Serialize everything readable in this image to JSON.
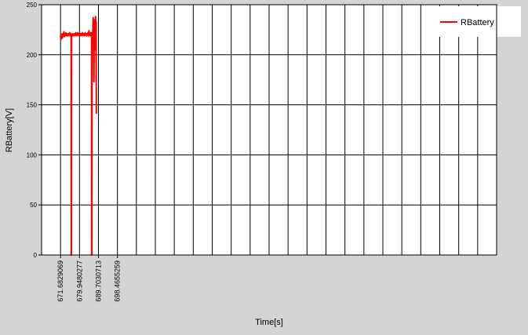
{
  "chart_data": {
    "type": "line",
    "title": "",
    "xlabel": "Time[s]",
    "ylabel": "RBattery[V]",
    "ylim": [
      0,
      250
    ],
    "yticks": [
      "0",
      "50",
      "100",
      "150",
      "200",
      "250"
    ],
    "xticks": [
      "671.6829069",
      "679.9480277",
      "689.7030713",
      "698.4655259"
    ],
    "grid": true,
    "legend_position": "top-right",
    "legend": [
      "RBattery"
    ],
    "series": [
      {
        "name": "RBattery",
        "color": "#ff0000",
        "points": [
          [
            0,
            218
          ],
          [
            0.5,
            221
          ],
          [
            1,
            216
          ],
          [
            1.5,
            220
          ],
          [
            2,
            217
          ],
          [
            2.5,
            221
          ],
          [
            3,
            219
          ],
          [
            3.5,
            223
          ],
          [
            4,
            218
          ],
          [
            4.5,
            221
          ],
          [
            5,
            219
          ],
          [
            5.5,
            222
          ],
          [
            6,
            220
          ],
          [
            6.5,
            219
          ],
          [
            7,
            221
          ],
          [
            7.5,
            220
          ],
          [
            8,
            219
          ],
          [
            8.5,
            221
          ],
          [
            9,
            220
          ],
          [
            9.5,
            222
          ],
          [
            10,
            219
          ],
          [
            10.5,
            221
          ],
          [
            11,
            220
          ],
          [
            11.2,
            220
          ],
          [
            11.3,
            0
          ],
          [
            11.45,
            0
          ],
          [
            11.6,
            219
          ],
          [
            12,
            221
          ],
          [
            12.5,
            220
          ],
          [
            13,
            219
          ],
          [
            13.5,
            221
          ],
          [
            14,
            220
          ],
          [
            14.5,
            219
          ],
          [
            15,
            221
          ],
          [
            15.5,
            220
          ],
          [
            16,
            222
          ],
          [
            16.5,
            219
          ],
          [
            17,
            221
          ],
          [
            17.5,
            220
          ],
          [
            18,
            222
          ],
          [
            18.5,
            219
          ],
          [
            19,
            221
          ],
          [
            19.5,
            220
          ],
          [
            20,
            222
          ],
          [
            20.5,
            220
          ],
          [
            21,
            221
          ],
          [
            21.5,
            219
          ],
          [
            22,
            221
          ],
          [
            22.5,
            220
          ],
          [
            23,
            222
          ],
          [
            23.5,
            219
          ],
          [
            24,
            221
          ],
          [
            24.5,
            220
          ],
          [
            25,
            221
          ],
          [
            25.5,
            219
          ],
          [
            26,
            222
          ],
          [
            26.5,
            220
          ],
          [
            27,
            221
          ],
          [
            27.5,
            219
          ],
          [
            28,
            221
          ],
          [
            28.5,
            220
          ],
          [
            29,
            222
          ],
          [
            29.5,
            219
          ],
          [
            30,
            224
          ],
          [
            30.5,
            220
          ],
          [
            31,
            221
          ],
          [
            31.5,
            219
          ],
          [
            32,
            222
          ],
          [
            32.5,
            221
          ],
          [
            32.7,
            220
          ],
          [
            32.8,
            0
          ],
          [
            33.05,
            0
          ],
          [
            33.2,
            222
          ],
          [
            33.5,
            219
          ],
          [
            34,
            221
          ],
          [
            34.4,
            237
          ],
          [
            34.8,
            225
          ],
          [
            35.2,
            173
          ],
          [
            35.6,
            232
          ],
          [
            36,
            235
          ],
          [
            36.3,
            213
          ],
          [
            36.6,
            205
          ],
          [
            36.9,
            238
          ],
          [
            37.2,
            228
          ],
          [
            37.5,
            233
          ],
          [
            37.8,
            141
          ]
        ]
      }
    ]
  }
}
